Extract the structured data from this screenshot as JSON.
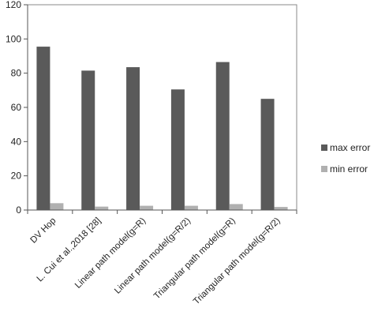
{
  "chart_data": {
    "type": "bar",
    "title": "",
    "xlabel": "",
    "ylabel": "",
    "ylim": [
      0,
      120
    ],
    "yticks": [
      0,
      20,
      40,
      60,
      80,
      100,
      120
    ],
    "grid": false,
    "legend_position": "right",
    "categories": [
      "DV Hop",
      "L. Cui et al.,2018 [28]",
      "Linear path model(g=R)",
      "Linear path model(g=R/2)",
      "Triangular path model(g=R)",
      "Triangular path model(g=R/2)"
    ],
    "series": [
      {
        "name": "max error",
        "color": "#5a5a5a",
        "values": [
          95.5,
          81.5,
          83.5,
          70.5,
          86.5,
          65
        ]
      },
      {
        "name": "min error",
        "color": "#b0b0b0",
        "values": [
          4,
          2,
          2.5,
          2.5,
          3.5,
          1.8
        ]
      }
    ]
  }
}
